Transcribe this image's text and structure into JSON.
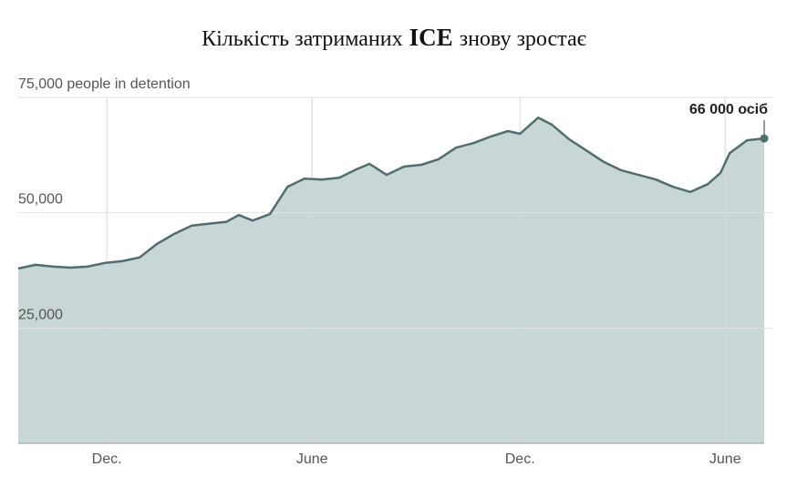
{
  "chart_data": {
    "type": "area",
    "title": [
      "Кількість затриманих",
      "ICE",
      "знову зростає"
    ],
    "annotation": "66 000 осіб",
    "color": "#4f6f6f",
    "fill": "#c9d6d6",
    "grid": true,
    "x": [
      0,
      0.51,
      1.01,
      1.52,
      2.03,
      2.53,
      3.04,
      3.55,
      4.05,
      4.56,
      5.07,
      5.57,
      6.08,
      6.45,
      6.85,
      7.36,
      7.87,
      8.37,
      8.88,
      9.39,
      9.89,
      10.27,
      10.77,
      11.28,
      11.79,
      12.29,
      12.8,
      13.31,
      13.81,
      14.32,
      14.67,
      15.2,
      15.6,
      16.11,
      16.61,
      17.12,
      17.63,
      18.13,
      18.64,
      19.15,
      19.65,
      20.16,
      20.53,
      20.8,
      21.31,
      21.81
    ],
    "values": [
      37900,
      38700,
      38300,
      38100,
      38300,
      39100,
      39500,
      40300,
      43200,
      45400,
      47200,
      47600,
      48000,
      49500,
      48300,
      49700,
      55600,
      57400,
      57200,
      57600,
      59400,
      60600,
      58200,
      60000,
      60400,
      61600,
      64100,
      65100,
      66500,
      67700,
      67100,
      70600,
      69100,
      65900,
      63500,
      61000,
      59200,
      58200,
      57200,
      55600,
      54500,
      56200,
      58600,
      62900,
      65700,
      66100
    ],
    "xlim": [
      0,
      21.81
    ],
    "xticks": [
      {
        "value": 2.59,
        "label": "Dec."
      },
      {
        "value": 8.59,
        "label": "June"
      },
      {
        "value": 14.67,
        "label": "Dec."
      },
      {
        "value": 20.67,
        "label": "June"
      }
    ],
    "ylim": [
      0,
      75000
    ],
    "yticks": [
      {
        "value": 25000,
        "label": "25,000"
      },
      {
        "value": 50000,
        "label": "50,000"
      },
      {
        "value": 75000,
        "label": "75,000 people in detention"
      }
    ]
  }
}
